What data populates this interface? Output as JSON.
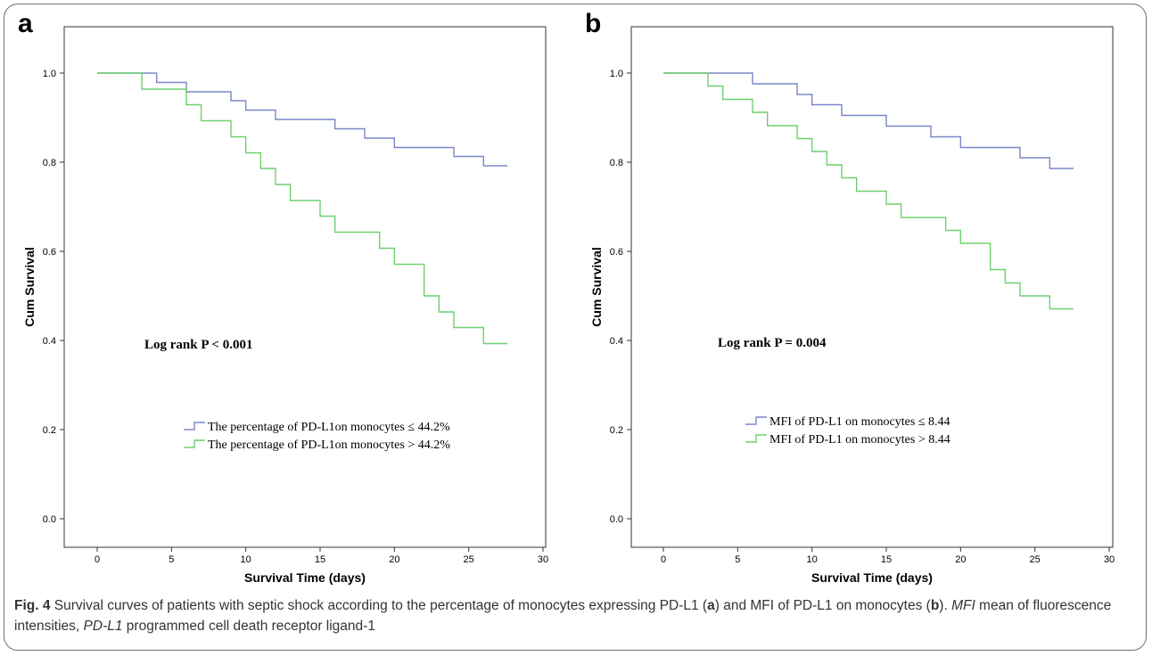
{
  "figure": {
    "caption": {
      "label": "Fig. 4",
      "parts": [
        {
          "t": " Survival curves of patients with septic shock according to the percentage of monocytes expressing PD-L1 (",
          "s": "n"
        },
        {
          "t": "a",
          "s": "b"
        },
        {
          "t": ") and MFI of PD-L1 on monocytes (",
          "s": "n"
        },
        {
          "t": "b",
          "s": "b"
        },
        {
          "t": "). ",
          "s": "n"
        },
        {
          "t": "MFI",
          "s": "i"
        },
        {
          "t": " mean of fluorescence intensities, ",
          "s": "n"
        },
        {
          "t": "PD-L1",
          "s": "i"
        },
        {
          "t": " programmed cell death receptor ligand-1",
          "s": "n"
        }
      ]
    }
  },
  "chart_data": [
    {
      "panel": "a",
      "type": "line",
      "step": true,
      "xlabel": "Survival Time (days)",
      "ylabel": "Cum Survival",
      "xlim": [
        0,
        30
      ],
      "ylim": [
        0,
        1
      ],
      "xticks": [
        "0",
        "5",
        "10",
        "15",
        "20",
        "25",
        "30"
      ],
      "yticks": [
        "0.0",
        "0.2",
        "0.4",
        "0.6",
        "0.8",
        "1.0"
      ],
      "annotation": "Log rank P < 0.001",
      "legend_position": "lower-center",
      "series": [
        {
          "name": "The percentage of PD-L1on monocytes ≤ 44.2%",
          "color": "#7b86c8",
          "steps": [
            [
              0,
              1.0
            ],
            [
              4,
              0.979
            ],
            [
              6,
              0.958
            ],
            [
              9,
              0.938
            ],
            [
              10,
              0.917
            ],
            [
              12,
              0.896
            ],
            [
              16,
              0.875
            ],
            [
              18,
              0.854
            ],
            [
              20,
              0.833
            ],
            [
              24,
              0.813
            ],
            [
              26,
              0.792
            ],
            [
              27.6,
              0.792
            ]
          ]
        },
        {
          "name": "The percentage of PD-L1on monocytes > 44.2%",
          "color": "#6fcf6f",
          "steps": [
            [
              0,
              1.0
            ],
            [
              3,
              0.964
            ],
            [
              6,
              0.929
            ],
            [
              7,
              0.893
            ],
            [
              9,
              0.857
            ],
            [
              10,
              0.821
            ],
            [
              11,
              0.786
            ],
            [
              12,
              0.75
            ],
            [
              13,
              0.714
            ],
            [
              15,
              0.679
            ],
            [
              16,
              0.643
            ],
            [
              19,
              0.607
            ],
            [
              20,
              0.571
            ],
            [
              22,
              0.5
            ],
            [
              23,
              0.464
            ],
            [
              24,
              0.429
            ],
            [
              26,
              0.393
            ],
            [
              27.6,
              0.393
            ]
          ]
        }
      ]
    },
    {
      "panel": "b",
      "type": "line",
      "step": true,
      "xlabel": "Survival Time (days)",
      "ylabel": "Cum Survival",
      "xlim": [
        0,
        30
      ],
      "ylim": [
        0,
        1
      ],
      "xticks": [
        "0",
        "5",
        "10",
        "15",
        "20",
        "25",
        "30"
      ],
      "yticks": [
        "0.0",
        "0.2",
        "0.4",
        "0.6",
        "0.8",
        "1.0"
      ],
      "annotation": "Log rank P = 0.004",
      "legend_position": "lower-center",
      "series": [
        {
          "name": "MFI of PD-L1 on monocytes ≤ 8.44",
          "color": "#7b86c8",
          "steps": [
            [
              0,
              1.0
            ],
            [
              6,
              0.976
            ],
            [
              9,
              0.952
            ],
            [
              10,
              0.929
            ],
            [
              12,
              0.905
            ],
            [
              15,
              0.881
            ],
            [
              18,
              0.857
            ],
            [
              20,
              0.833
            ],
            [
              24,
              0.81
            ],
            [
              26,
              0.786
            ],
            [
              27.6,
              0.786
            ]
          ]
        },
        {
          "name": "MFI of PD-L1 on monocytes > 8.44",
          "color": "#6fcf6f",
          "steps": [
            [
              0,
              1.0
            ],
            [
              3,
              0.971
            ],
            [
              4,
              0.941
            ],
            [
              6,
              0.912
            ],
            [
              7,
              0.882
            ],
            [
              9,
              0.853
            ],
            [
              10,
              0.824
            ],
            [
              11,
              0.794
            ],
            [
              12,
              0.765
            ],
            [
              13,
              0.735
            ],
            [
              15,
              0.706
            ],
            [
              16,
              0.676
            ],
            [
              19,
              0.647
            ],
            [
              20,
              0.618
            ],
            [
              22,
              0.559
            ],
            [
              23,
              0.529
            ],
            [
              24,
              0.5
            ],
            [
              26,
              0.471
            ],
            [
              27.6,
              0.471
            ]
          ]
        }
      ]
    }
  ]
}
